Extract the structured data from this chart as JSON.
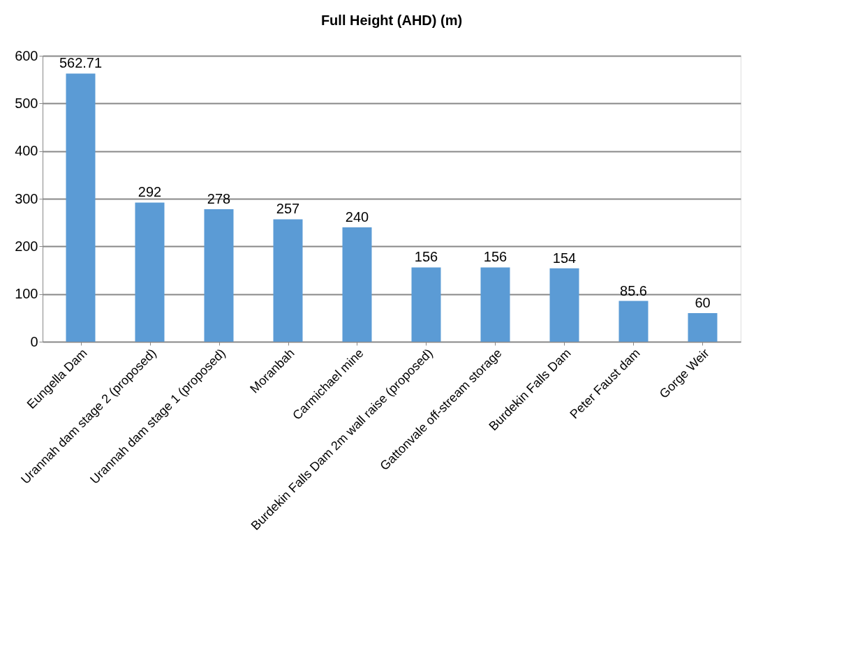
{
  "chart_data": {
    "type": "bar",
    "title": "Full Height (AHD) (m)",
    "categories": [
      "Eungella Dam",
      "Urannah dam stage 2 (proposed)",
      "Urannah dam stage 1 (proposed)",
      "Moranbah",
      "Carmichael mine",
      "Burdekin Falls Dam 2m wall raise (proposed)",
      "Gattonvale off-stream storage",
      "Burdekin Falls Dam",
      "Peter Faust dam",
      "Gorge Weir"
    ],
    "values": [
      562.71,
      292,
      278,
      257,
      240,
      156,
      156,
      154,
      85.6,
      60
    ],
    "color": "#5b9bd5",
    "ylim": [
      0,
      600
    ],
    "yticks": [
      0,
      100,
      200,
      300,
      400,
      500,
      600
    ],
    "grid": "y",
    "data_labels": true
  }
}
